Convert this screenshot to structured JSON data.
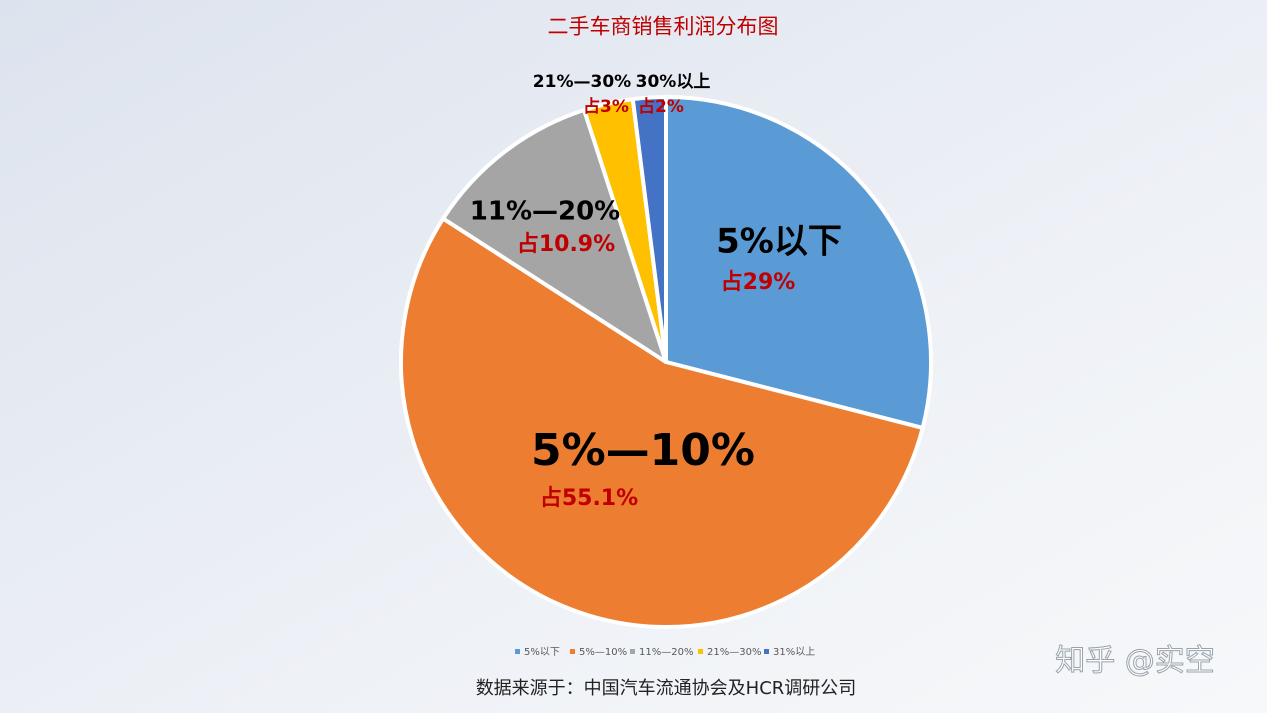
{
  "chart_data": {
    "type": "pie",
    "title": "二手车商销售利润分布图",
    "categories": [
      "5%以下",
      "5%—10%",
      "11%—20%",
      "21%—30%",
      "30%以上"
    ],
    "values": [
      29,
      55.1,
      10.9,
      3,
      2
    ],
    "value_labels": [
      "占29%",
      "占55.1%",
      "占10.9%",
      "占3%",
      "占2%"
    ],
    "colors": [
      "#5b9bd5",
      "#ed7d31",
      "#a5a5a5",
      "#ffc000",
      "#4472c4"
    ],
    "legend": [
      "5%以下",
      "5%—10%",
      "11%—20%",
      "21%—30%",
      "31%以上"
    ],
    "legend_position": "bottom",
    "source": "数据来源于：中国汽车流通协会及HCR调研公司",
    "watermark": "知乎 @实空"
  }
}
